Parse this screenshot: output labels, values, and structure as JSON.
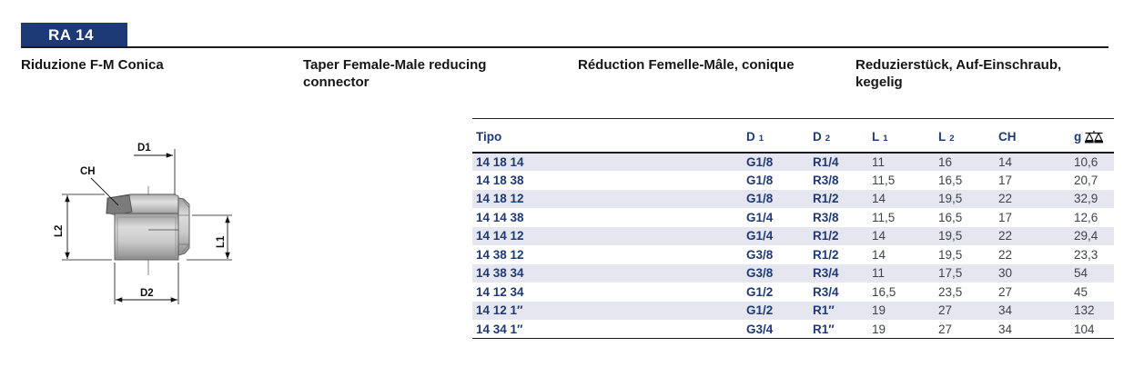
{
  "page": {
    "code": "RA 14"
  },
  "titles": {
    "it": "Riduzione F-M Conica",
    "en": "Taper Female-Male reducing connector",
    "fr": "Réduction Femelle-Mâle, conique",
    "de": "Reduzierstück, Auf-Einschraub, kegelig"
  },
  "diagram": {
    "labels": {
      "d1": "D1",
      "ch": "CH",
      "l2": "L2",
      "l1": "L1",
      "d2": "D2"
    }
  },
  "table": {
    "columns": [
      {
        "key": "tipo",
        "label": "Tipo",
        "sub": ""
      },
      {
        "key": "d1",
        "label": "D",
        "sub": "1"
      },
      {
        "key": "d2",
        "label": "D",
        "sub": "2"
      },
      {
        "key": "l1",
        "label": "L",
        "sub": "1"
      },
      {
        "key": "l2",
        "label": "L",
        "sub": "2"
      },
      {
        "key": "ch",
        "label": "CH",
        "sub": ""
      },
      {
        "key": "g",
        "label": "g",
        "sub": "",
        "icon": "scale-icon"
      }
    ],
    "rows": [
      [
        "14 18 14",
        "G1/8",
        "R1/4",
        "11",
        "16",
        "14",
        "10,6"
      ],
      [
        "14 18 38",
        "G1/8",
        "R3/8",
        "11,5",
        "16,5",
        "17",
        "20,7"
      ],
      [
        "14 18 12",
        "G1/8",
        "R1/2",
        "14",
        "19,5",
        "22",
        "32,9"
      ],
      [
        "14 14 38",
        "G1/4",
        "R3/8",
        "11,5",
        "16,5",
        "17",
        "12,6"
      ],
      [
        "14 14 12",
        "G1/4",
        "R1/2",
        "14",
        "19,5",
        "22",
        "29,4"
      ],
      [
        "14 38 12",
        "G3/8",
        "R1/2",
        "14",
        "19,5",
        "22",
        "23,3"
      ],
      [
        "14 38 34",
        "G3/8",
        "R3/4",
        "11",
        "17,5",
        "30",
        "54"
      ],
      [
        "14 12 34",
        "G1/2",
        "R3/4",
        "16,5",
        "23,5",
        "27",
        "45"
      ],
      [
        "14 12 1″",
        "G1/2",
        "R1″",
        "19",
        "27",
        "34",
        "132"
      ],
      [
        "14 34 1″",
        "G3/4",
        "R1″",
        "19",
        "27",
        "34",
        "104"
      ]
    ]
  },
  "colors": {
    "accent_navy": "#1e3a76",
    "row_stripe": "#e6e6f0",
    "value_text": "#3e434b",
    "rule_dark": "#1c1c24"
  }
}
